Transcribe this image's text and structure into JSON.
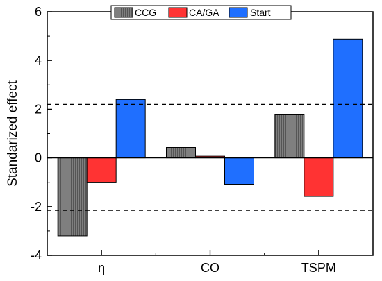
{
  "chart_data": {
    "type": "bar",
    "categories": [
      "η",
      "CO",
      "TSPM"
    ],
    "series": [
      {
        "name": "CCG",
        "values": [
          -3.2,
          0.43,
          1.77
        ],
        "color": "#7f7f7f",
        "pattern": "fine-vertical-hatch"
      },
      {
        "name": "CA/GA",
        "values": [
          -1.02,
          0.07,
          -1.58
        ],
        "color": "#ff3333"
      },
      {
        "name": "Start",
        "values": [
          2.4,
          -1.08,
          4.88
        ],
        "color": "#1f6fff"
      }
    ],
    "reference_lines": [
      2.2,
      -2.15
    ],
    "reference_line_style": "dashed",
    "ylabel": "Standarized effect",
    "xlabel": "",
    "ylim": [
      -4,
      6
    ],
    "yticks": [
      -4,
      -2,
      0,
      2,
      4,
      6
    ],
    "ytick_labels": [
      "-4",
      "-2",
      "0",
      "2",
      "4",
      "6"
    ],
    "grid": false,
    "legend": "top-center"
  }
}
